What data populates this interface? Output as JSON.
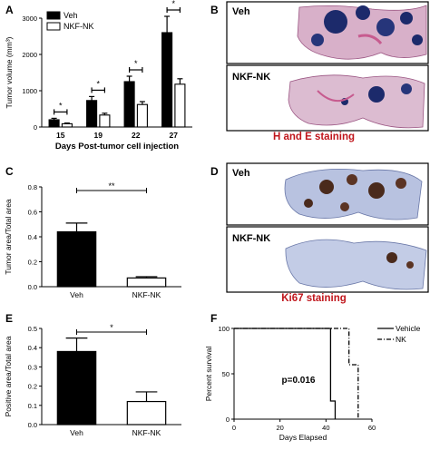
{
  "figure": {
    "panel_labels": {
      "a": "A",
      "b": "B",
      "c": "C",
      "d": "D",
      "e": "E",
      "f": "F"
    }
  },
  "colors": {
    "veh_bar": "#000000",
    "nk_bar": "#ffffff",
    "caption_red": "#c0161c",
    "he_stain_dark": "#1c2a6b",
    "he_stain_pink": "#c75b8f",
    "ki67_brown": "#4a2a1c",
    "ki67_blue": "#8b9bc9"
  },
  "panel_b": {
    "image_top_label": "Veh",
    "image_bottom_label": "NKF-NK",
    "caption": "H and E staining"
  },
  "panel_d": {
    "image_top_label": "Veh",
    "image_bottom_label": "NKF-NK",
    "caption": "Ki67 staining"
  },
  "chart_data": [
    {
      "panel": "A",
      "type": "bar",
      "ylabel": "Tumor volume (mm³)",
      "xlabel": "Days Post-tumor cell injection",
      "categories": [
        "15",
        "19",
        "22",
        "27"
      ],
      "ylim": [
        0,
        3000
      ],
      "yticks": [
        0,
        1000,
        2000,
        3000
      ],
      "legend_position": "top-left",
      "series": [
        {
          "name": "Veh",
          "values": [
            200,
            730,
            1250,
            2600
          ],
          "errors": [
            40,
            110,
            150,
            450
          ],
          "fill": "black"
        },
        {
          "name": "NKF-NK",
          "values": [
            90,
            330,
            620,
            1180
          ],
          "errors": [
            20,
            50,
            80,
            150
          ],
          "fill": "white"
        }
      ],
      "significance": [
        "*",
        "*",
        "*",
        "*"
      ]
    },
    {
      "panel": "C",
      "type": "bar",
      "ylabel": "Tumor area/Total area",
      "categories": [
        "Veh",
        "NKF-NK"
      ],
      "values": [
        0.44,
        0.07
      ],
      "errors": [
        0.07,
        0.01
      ],
      "ylim": [
        0,
        0.8
      ],
      "yticks": [
        0.0,
        0.2,
        0.4,
        0.6,
        0.8
      ],
      "significance": "**"
    },
    {
      "panel": "E",
      "type": "bar",
      "ylabel": "Positive area/Total area",
      "categories": [
        "Veh",
        "NKF-NK"
      ],
      "values": [
        0.38,
        0.12
      ],
      "errors": [
        0.07,
        0.05
      ],
      "ylim": [
        0,
        0.5
      ],
      "yticks": [
        0.0,
        0.1,
        0.2,
        0.3,
        0.4,
        0.5
      ],
      "significance": "*"
    },
    {
      "panel": "F",
      "type": "line",
      "ylabel": "Percent survival",
      "xlabel": "Days Elapsed",
      "xlim": [
        0,
        60
      ],
      "ylim": [
        0,
        100
      ],
      "xticks": [
        0,
        20,
        40,
        60
      ],
      "yticks": [
        0,
        50,
        100
      ],
      "annotation": "p=0.016",
      "legend_position": "right",
      "series": [
        {
          "name": "Vehicle",
          "style": "solid",
          "points": [
            [
              0,
              100
            ],
            [
              42,
              100
            ],
            [
              42,
              20
            ],
            [
              44,
              20
            ],
            [
              44,
              0
            ]
          ]
        },
        {
          "name": "NK",
          "style": "dashdot",
          "points": [
            [
              0,
              100
            ],
            [
              50,
              100
            ],
            [
              50,
              60
            ],
            [
              54,
              60
            ],
            [
              54,
              0
            ]
          ]
        }
      ]
    }
  ]
}
